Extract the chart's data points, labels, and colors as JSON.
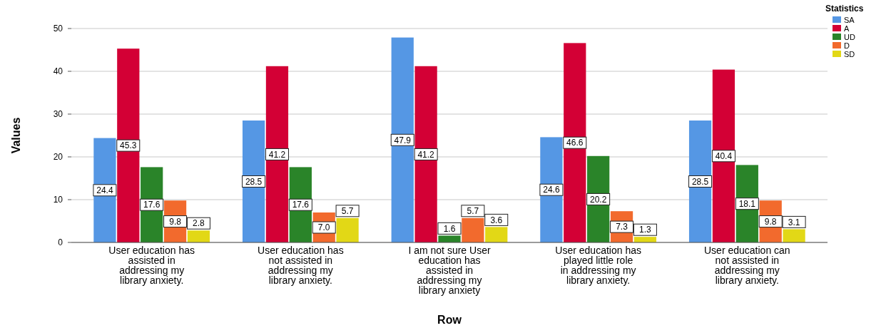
{
  "chart_data": {
    "type": "bar",
    "xlabel": "Row",
    "ylabel": "Values",
    "legend_title": "Statistics",
    "legend": "top right",
    "categories": [
      "User education has assisted in addressing my library anxiety.",
      "User education has not assisted in addressing my library anxiety.",
      "I am not sure User education has assisted in addressing my library anxiety",
      "User education has played little role in addressing my library anxiety.",
      "User education can not assisted in addressing my library anxiety."
    ],
    "series": [
      {
        "name": "SA",
        "color": "#5597e4",
        "values": [
          24.4,
          28.5,
          47.9,
          24.6,
          28.5
        ],
        "value_labels": [
          "24.4",
          "28.5",
          "47.9",
          "24.6",
          "28.5"
        ]
      },
      {
        "name": "A",
        "color": "#d30035",
        "values": [
          45.3,
          41.2,
          41.2,
          46.6,
          40.4
        ],
        "value_labels": [
          "45.3",
          "41.2",
          "41.2",
          "46.6",
          "40.4"
        ]
      },
      {
        "name": "UD",
        "color": "#2a8429",
        "values": [
          17.6,
          17.6,
          1.6,
          20.2,
          18.1
        ],
        "value_labels": [
          "17.6",
          "17.6",
          "1.6",
          "20.2",
          "18.1"
        ]
      },
      {
        "name": "D",
        "color": "#f26a2d",
        "values": [
          9.8,
          7.0,
          5.7,
          7.3,
          9.8
        ],
        "value_labels": [
          "9.8",
          "7.0",
          "5.7",
          "7.3",
          "9.8"
        ]
      },
      {
        "name": "SD",
        "color": "#e2d816",
        "values": [
          2.8,
          5.7,
          3.6,
          1.3,
          3.1
        ],
        "value_labels": [
          "2.8",
          "5.7",
          "3.6",
          "1.3",
          "3.1"
        ]
      }
    ],
    "ylim": [
      0,
      50
    ],
    "yticks": [
      0,
      10,
      20,
      30,
      40,
      50
    ],
    "grid": "y"
  }
}
